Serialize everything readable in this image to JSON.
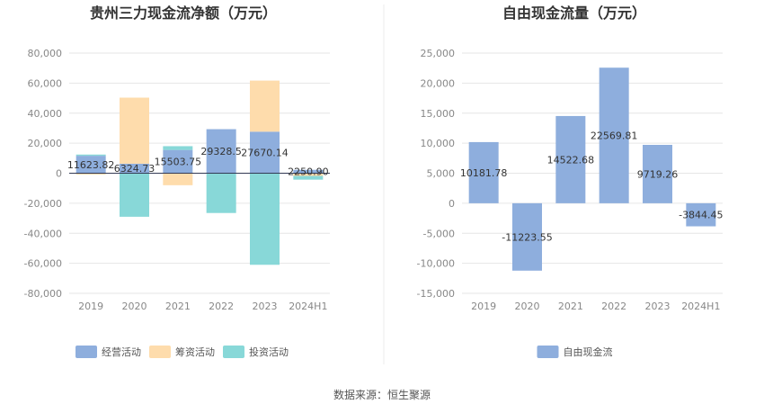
{
  "source_label": "数据来源：恒生聚源",
  "colors": {
    "operating": "#8eaedd",
    "financing": "#fedcac",
    "investing": "#88d8d8",
    "free": "#8eaedd"
  },
  "chart_data": [
    {
      "type": "bar",
      "stacked": true,
      "title": "贵州三力现金流净额（万元）",
      "categories": [
        "2019",
        "2020",
        "2021",
        "2022",
        "2023",
        "2024H1"
      ],
      "ylim": [
        -80000,
        80000
      ],
      "yticks": [
        "80,000",
        "60,000",
        "40,000",
        "20,000",
        "0",
        "-20,000",
        "-40,000",
        "-60,000",
        "-80,000"
      ],
      "yticks_values": [
        80000,
        60000,
        40000,
        20000,
        0,
        -20000,
        -40000,
        -60000,
        -80000
      ],
      "series": [
        {
          "name": "经营活动",
          "values": [
            11623.82,
            6324.73,
            15503.75,
            29328.5,
            27670.14,
            2250.9
          ]
        },
        {
          "name": "筹资活动",
          "values": [
            -900,
            44000,
            -8000,
            0,
            34000,
            -1800
          ]
        },
        {
          "name": "投资活动",
          "values": [
            800,
            -29000,
            2500,
            -26500,
            -61000,
            -2500
          ]
        }
      ],
      "data_labels": [
        "11623.82",
        "6324.73",
        "15503.75",
        "29328.5",
        "27670.14",
        "2250.90"
      ],
      "legend_position": "bottom"
    },
    {
      "type": "bar",
      "title": "自由现金流量（万元）",
      "categories": [
        "2019",
        "2020",
        "2021",
        "2022",
        "2023",
        "2024H1"
      ],
      "ylim": [
        -15000,
        25000
      ],
      "yticks": [
        "25,000",
        "20,000",
        "15,000",
        "10,000",
        "5,000",
        "0",
        "-5,000",
        "-10,000",
        "-15,000"
      ],
      "yticks_values": [
        25000,
        20000,
        15000,
        10000,
        5000,
        0,
        -5000,
        -10000,
        -15000
      ],
      "series": [
        {
          "name": "自由现金流",
          "values": [
            10181.78,
            -11223.55,
            14522.68,
            22569.81,
            9719.26,
            -3844.45
          ]
        }
      ],
      "data_labels": [
        "10181.78",
        "-11223.55",
        "14522.68",
        "22569.81",
        "9719.26",
        "-3844.45"
      ],
      "legend_position": "bottom"
    }
  ]
}
